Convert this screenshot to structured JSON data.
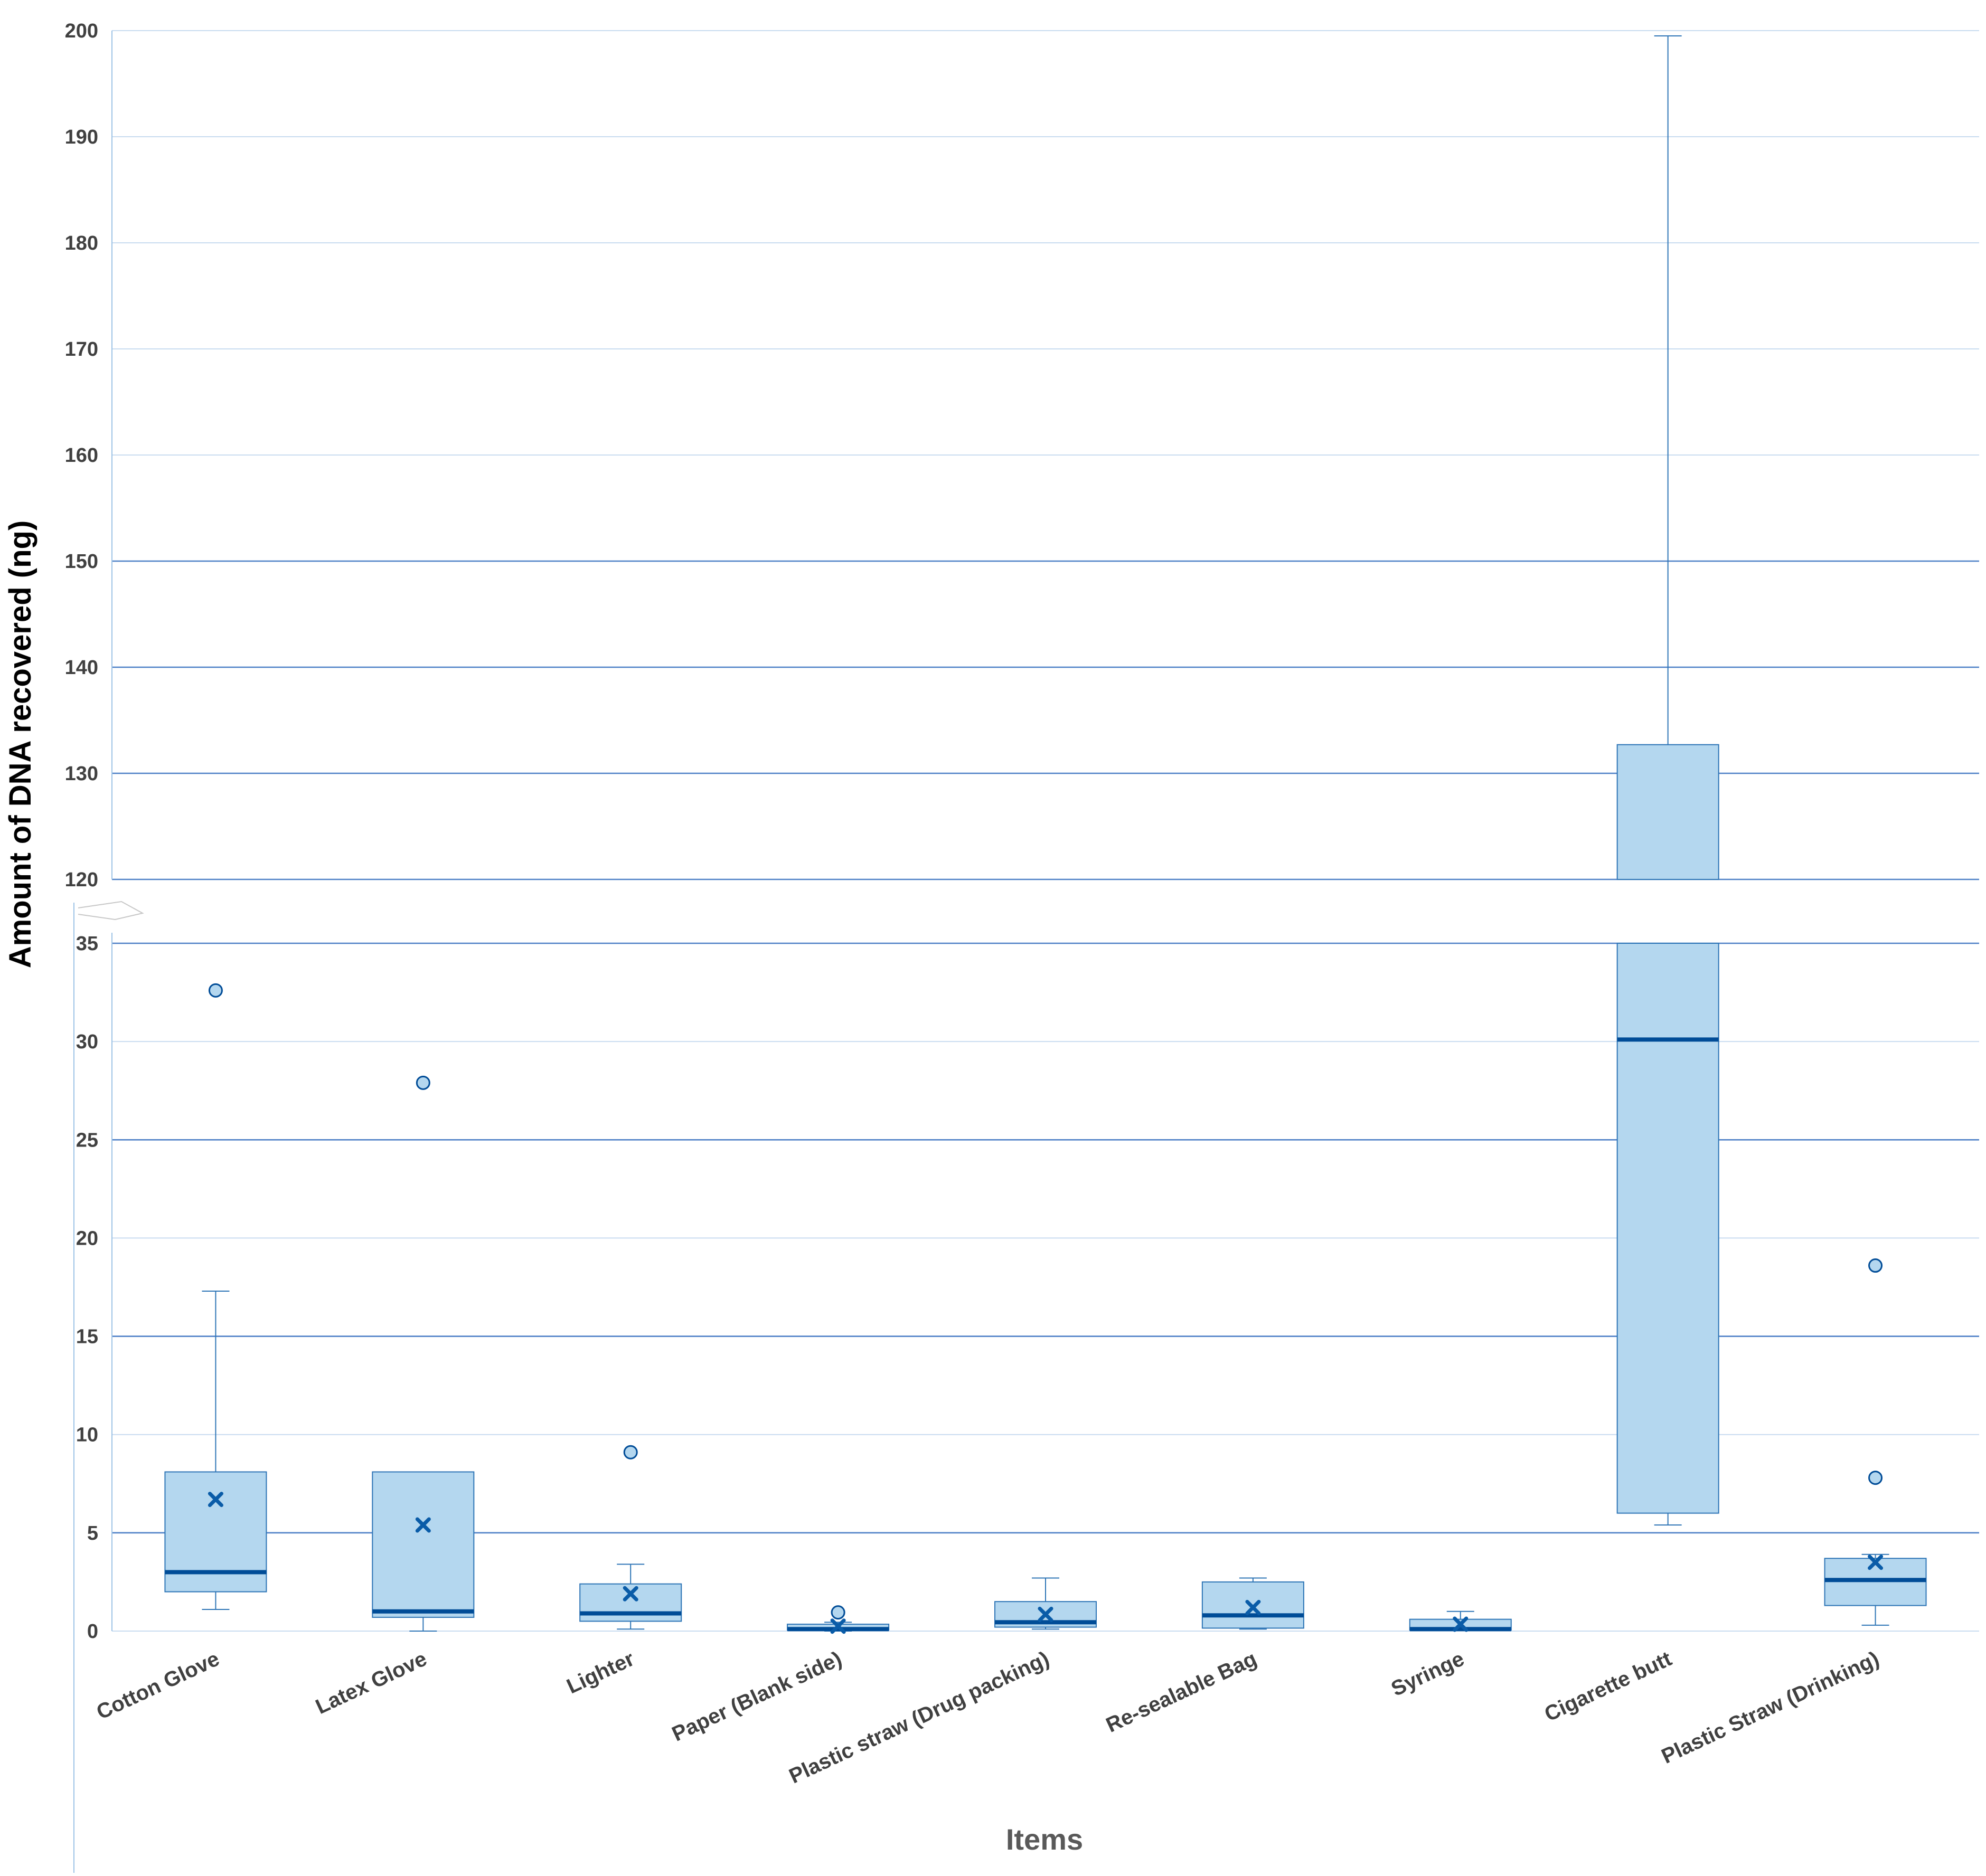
{
  "chart_data": {
    "type": "box",
    "ylabel": "Amount of DNA recovered (ng)",
    "xlabel": "Items",
    "colors": {
      "box_fill": "#b4d7ef",
      "box_stroke": "#2e75b6",
      "median": "#004c97",
      "mean": "#0a5ca8",
      "grid_major": "#4f81c7",
      "grid_minor": "#c9dcf0",
      "axis": "#9dc3e6"
    },
    "y_axis_break": {
      "lower_range": [
        0,
        35
      ],
      "upper_range": [
        120,
        200
      ]
    },
    "lower_ticks": [
      "0",
      "5",
      "10",
      "15",
      "20",
      "25",
      "30",
      "35"
    ],
    "upper_ticks": [
      "120",
      "130",
      "140",
      "150",
      "160",
      "170",
      "180",
      "190",
      "200"
    ],
    "categories": [
      "Cotton Glove",
      "Latex Glove",
      "Lighter",
      "Paper (Blank side)",
      "Plastic straw (Drug packing)",
      "Re-sealable Bag",
      "Syringe",
      "Cigarette butt",
      "Plastic Straw (Drinking)"
    ],
    "boxes": [
      {
        "name": "Cotton Glove",
        "whisker_low": 1.1,
        "q1": 2.0,
        "median": 3.0,
        "q3": 8.1,
        "whisker_high": 17.3,
        "mean": 6.7,
        "outliers": [
          32.6
        ]
      },
      {
        "name": "Latex Glove",
        "whisker_low": 0.0,
        "q1": 0.7,
        "median": 1.0,
        "q3": 8.1,
        "whisker_high": 8.1,
        "mean": 5.4,
        "outliers": [
          27.9
        ]
      },
      {
        "name": "Lighter",
        "whisker_low": 0.1,
        "q1": 0.5,
        "median": 0.9,
        "q3": 2.4,
        "whisker_high": 3.4,
        "mean": 1.9,
        "outliers": [
          9.1
        ]
      },
      {
        "name": "Paper (Blank side)",
        "whisker_low": 0.0,
        "q1": 0.05,
        "median": 0.1,
        "q3": 0.35,
        "whisker_high": 0.45,
        "mean": 0.25,
        "outliers": [
          0.95
        ]
      },
      {
        "name": "Plastic straw (Drug packing)",
        "whisker_low": 0.1,
        "q1": 0.2,
        "median": 0.45,
        "q3": 1.5,
        "whisker_high": 2.7,
        "mean": 0.85,
        "outliers": []
      },
      {
        "name": "Re-sealable Bag",
        "whisker_low": 0.1,
        "q1": 0.15,
        "median": 0.8,
        "q3": 2.5,
        "whisker_high": 2.7,
        "mean": 1.2,
        "outliers": []
      },
      {
        "name": "Syringe",
        "whisker_low": 0.05,
        "q1": 0.05,
        "median": 0.1,
        "q3": 0.6,
        "whisker_high": 1.0,
        "mean": 0.35,
        "outliers": []
      },
      {
        "name": "Cigarette butt",
        "whisker_low": 5.4,
        "q1": 6.0,
        "median": 30.1,
        "q3": 132.7,
        "whisker_high": 199.5,
        "mean": null,
        "outliers": []
      },
      {
        "name": "Plastic Straw (Drinking)",
        "whisker_low": 0.3,
        "q1": 1.3,
        "median": 2.6,
        "q3": 3.7,
        "whisker_high": 3.9,
        "mean": 3.5,
        "outliers": [
          7.8,
          18.6
        ]
      }
    ]
  }
}
